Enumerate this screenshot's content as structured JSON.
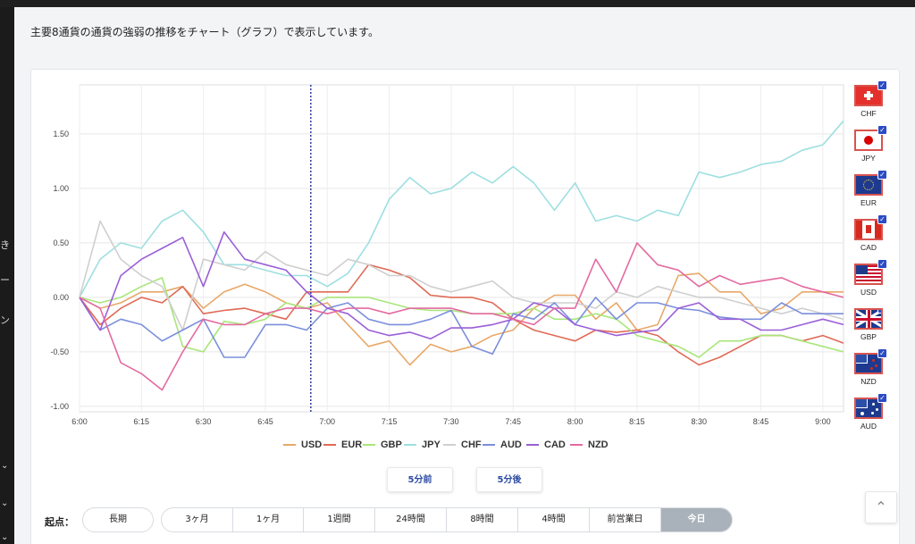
{
  "description": "主要8通貨の通貨の強弱の推移をチャート（グラフ）で表示しています。",
  "left_sidebar": {
    "fragments": [
      "き",
      "ー",
      "ン"
    ]
  },
  "flags": [
    {
      "code": "CHF",
      "checked": true
    },
    {
      "code": "JPY",
      "checked": true
    },
    {
      "code": "EUR",
      "checked": true
    },
    {
      "code": "CAD",
      "checked": true
    },
    {
      "code": "USD",
      "checked": true
    },
    {
      "code": "GBP",
      "checked": true
    },
    {
      "code": "NZD",
      "checked": true
    },
    {
      "code": "AUD",
      "checked": true
    }
  ],
  "legend": [
    "USD",
    "EUR",
    "GBP",
    "JPY",
    "CHF",
    "AUD",
    "CAD",
    "NZD"
  ],
  "nav": {
    "prev": "5分前",
    "next": "5分後"
  },
  "start_label": "起点：",
  "long_term": "長期",
  "ranges": [
    "3ヶ月",
    "1ヶ月",
    "1週間",
    "24時間",
    "8時間",
    "4時間",
    "前営業日",
    "今日"
  ],
  "active_range": "今日",
  "chart_data": {
    "type": "line",
    "x": [
      "6:00",
      "6:05",
      "6:10",
      "6:15",
      "6:20",
      "6:25",
      "6:30",
      "6:35",
      "6:40",
      "6:45",
      "6:50",
      "6:55",
      "7:00",
      "7:05",
      "7:10",
      "7:15",
      "7:20",
      "7:25",
      "7:30",
      "7:35",
      "7:40",
      "7:45",
      "7:50",
      "7:55",
      "8:00",
      "8:05",
      "8:10",
      "8:15",
      "8:20",
      "8:25",
      "8:30",
      "8:35",
      "8:40",
      "8:45",
      "8:50",
      "8:55",
      "9:00",
      "9:05"
    ],
    "x_ticks": [
      "6:00",
      "6:15",
      "6:30",
      "6:45",
      "7:00",
      "7:15",
      "7:30",
      "7:45",
      "8:00",
      "8:15",
      "8:30",
      "8:45",
      "9:00"
    ],
    "y_ticks": [
      "1.50",
      "1.00",
      "0.50",
      "0.00",
      "-0.50",
      "-1.00"
    ],
    "ylim": [
      -1.05,
      1.95
    ],
    "marker_x": "6:56",
    "series": [
      {
        "name": "USD",
        "color": "#e8a869",
        "values": [
          0,
          -0.1,
          -0.05,
          0.05,
          0.05,
          0.1,
          -0.1,
          0.05,
          0.12,
          0.05,
          -0.05,
          -0.1,
          -0.05,
          -0.25,
          -0.45,
          -0.4,
          -0.62,
          -0.43,
          -0.5,
          -0.45,
          -0.35,
          -0.3,
          -0.1,
          0.02,
          0.02,
          -0.2,
          -0.05,
          -0.3,
          -0.25,
          0.2,
          0.22,
          0.05,
          0.05,
          -0.15,
          -0.1,
          0.05,
          0.05,
          0.05
        ]
      },
      {
        "name": "EUR",
        "color": "#e06a55",
        "values": [
          0,
          -0.25,
          -0.1,
          0,
          -0.05,
          0.1,
          -0.15,
          -0.12,
          -0.1,
          -0.15,
          -0.2,
          0.05,
          0.05,
          0.05,
          0.3,
          0.25,
          0.18,
          0.02,
          0,
          0,
          -0.05,
          -0.2,
          -0.3,
          -0.35,
          -0.4,
          -0.3,
          -0.32,
          -0.3,
          -0.35,
          -0.5,
          -0.62,
          -0.55,
          -0.45,
          -0.35,
          -0.35,
          -0.4,
          -0.35,
          -0.42
        ]
      },
      {
        "name": "GBP",
        "color": "#a8e67a",
        "values": [
          0,
          -0.05,
          0,
          0.1,
          0.18,
          -0.45,
          -0.5,
          -0.22,
          -0.25,
          -0.2,
          -0.05,
          -0.1,
          0,
          0,
          0,
          -0.05,
          -0.1,
          -0.12,
          -0.12,
          -0.15,
          -0.15,
          -0.15,
          -0.1,
          -0.2,
          -0.2,
          -0.15,
          -0.2,
          -0.35,
          -0.4,
          -0.45,
          -0.55,
          -0.4,
          -0.4,
          -0.35,
          -0.35,
          -0.4,
          -0.45,
          -0.5
        ]
      },
      {
        "name": "JPY",
        "color": "#9edfe0",
        "values": [
          0,
          0.35,
          0.5,
          0.45,
          0.7,
          0.8,
          0.6,
          0.3,
          0.3,
          0.25,
          0.2,
          0.2,
          0.1,
          0.22,
          0.5,
          0.9,
          1.1,
          0.95,
          1.0,
          1.15,
          1.05,
          1.2,
          1.05,
          0.8,
          1.05,
          0.7,
          0.75,
          0.7,
          0.8,
          0.75,
          1.15,
          1.1,
          1.15,
          1.22,
          1.25,
          1.35,
          1.4,
          1.62
        ]
      },
      {
        "name": "CHF",
        "color": "#cfcfcf",
        "values": [
          0,
          0.7,
          0.35,
          0.2,
          0.1,
          -0.3,
          0.35,
          0.3,
          0.25,
          0.42,
          0.3,
          0.25,
          0.2,
          0.35,
          0.3,
          0.2,
          0.2,
          0.1,
          0.05,
          0.1,
          0.15,
          0,
          -0.05,
          -0.05,
          -0.05,
          -0.1,
          0.05,
          0,
          0.1,
          0.05,
          0,
          0,
          -0.05,
          -0.1,
          -0.15,
          -0.1,
          -0.15,
          -0.2
        ]
      },
      {
        "name": "AUD",
        "color": "#7b8fdc",
        "values": [
          0,
          -0.3,
          -0.2,
          -0.25,
          -0.4,
          -0.3,
          -0.2,
          -0.55,
          -0.55,
          -0.25,
          -0.25,
          -0.3,
          -0.1,
          -0.05,
          -0.2,
          -0.25,
          -0.25,
          -0.2,
          -0.12,
          -0.45,
          -0.52,
          -0.15,
          -0.2,
          -0.05,
          -0.25,
          0,
          -0.2,
          -0.05,
          -0.05,
          -0.1,
          -0.12,
          -0.18,
          -0.2,
          -0.2,
          -0.05,
          -0.15,
          -0.15,
          -0.15
        ]
      },
      {
        "name": "CAD",
        "color": "#9a5fd8",
        "values": [
          0,
          -0.3,
          0.2,
          0.35,
          0.45,
          0.55,
          0.1,
          0.6,
          0.35,
          0.3,
          0.25,
          0.05,
          -0.1,
          -0.15,
          -0.3,
          -0.35,
          -0.32,
          -0.38,
          -0.28,
          -0.28,
          -0.25,
          -0.2,
          -0.05,
          -0.1,
          -0.25,
          -0.3,
          -0.35,
          -0.32,
          -0.3,
          -0.1,
          -0.05,
          -0.2,
          -0.2,
          -0.3,
          -0.3,
          -0.25,
          -0.2,
          -0.25
        ]
      },
      {
        "name": "NZD",
        "color": "#e46aa0",
        "values": [
          0,
          -0.1,
          -0.6,
          -0.7,
          -0.85,
          -0.5,
          -0.2,
          -0.25,
          -0.25,
          -0.15,
          -0.1,
          -0.1,
          -0.15,
          -0.1,
          -0.1,
          -0.15,
          -0.1,
          -0.1,
          -0.1,
          -0.15,
          -0.15,
          -0.2,
          -0.25,
          -0.1,
          -0.1,
          0.35,
          0.05,
          0.5,
          0.3,
          0.25,
          0.1,
          0.2,
          0.12,
          0.15,
          0.18,
          0.1,
          0.05,
          0
        ]
      }
    ]
  }
}
